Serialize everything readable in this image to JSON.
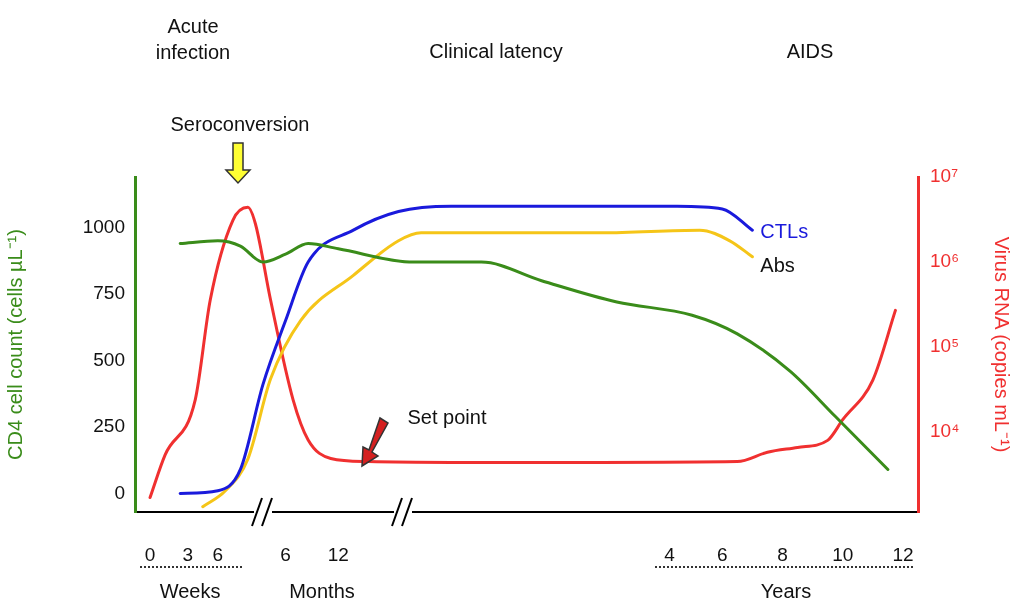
{
  "chart_data": {
    "type": "line",
    "ylabel": "CD4 cell count (cells µL⁻¹)",
    "y2label": "Virus RNA (copies mL⁻¹)",
    "annotations": [
      "Acute infection",
      "Clinical latency",
      "AIDS",
      "Seroconversion",
      {
        "text": "Set point",
        "y": 120
      },
      "Weeks",
      "Months",
      "Years"
    ],
    "categories": [
      null,
      null,
      "0",
      null,
      null,
      null,
      null,
      "3",
      null,
      null,
      null,
      "6",
      null,
      null,
      null,
      null,
      null,
      null,
      null,
      null,
      "6",
      null,
      null,
      null,
      null,
      null,
      null,
      "12",
      null,
      null,
      null,
      null,
      null,
      null,
      null,
      null,
      null,
      null,
      null,
      null,
      null,
      null,
      null,
      null,
      null,
      null,
      null,
      null,
      null,
      null,
      null,
      null,
      null,
      null,
      null,
      null,
      null,
      null,
      null,
      null,
      null,
      null,
      null,
      null,
      null,
      null,
      null,
      null,
      null,
      null,
      null,
      "4",
      null,
      null,
      null,
      null,
      null,
      null,
      "6",
      null,
      null,
      null,
      null,
      null,
      null,
      null,
      "8",
      null,
      null,
      null,
      null,
      null,
      null,
      null,
      "10",
      null,
      null,
      null,
      null,
      null,
      null,
      null,
      "12",
      null,
      null
    ],
    "ylim": [
      -70,
      1190
    ],
    "yticks": [
      0,
      250,
      500,
      750,
      1000
    ],
    "y2lim": [
      1150,
      10000000
    ],
    "y2ticks": [
      {
        "value": 10000,
        "label": "10⁴"
      },
      {
        "value": 100000,
        "label": "10⁵"
      },
      {
        "value": 1000000,
        "label": "10⁶"
      },
      {
        "value": 10000000,
        "label": "10⁷"
      }
    ],
    "log": "y2",
    "grid": false,
    "legend": false,
    "series": [
      {
        "color": "#3a8c1a",
        "values": [
          null,
          null,
          null,
          null,
          null,
          null,
          940,
          null,
          null,
          null,
          null,
          950,
          null,
          null,
          930,
          null,
          null,
          870,
          null,
          null,
          900,
          null,
          null,
          940,
          null,
          null,
          null,
          920,
          null,
          null,
          null,
          null,
          null,
          null,
          null,
          null,
          null,
          870,
          null,
          null,
          null,
          null,
          null,
          null,
          null,
          null,
          870,
          null,
          null,
          null,
          null,
          null,
          null,
          null,
          800,
          null,
          null,
          null,
          null,
          null,
          null,
          null,
          null,
          null,
          720,
          null,
          null,
          null,
          null,
          null,
          null,
          null,
          null,
          null,
          670,
          null,
          null,
          null,
          null,
          null,
          600,
          null,
          null,
          null,
          null,
          null,
          null,
          460,
          null,
          null,
          null,
          null,
          null,
          290,
          null,
          null,
          null,
          null,
          null,
          null,
          90,
          null,
          null,
          null,
          null
        ]
      },
      {
        "name": "CTLs",
        "color": "#1a1adc",
        "values": [
          null,
          null,
          null,
          null,
          null,
          null,
          0,
          null,
          null,
          null,
          null,
          10,
          null,
          null,
          90,
          null,
          null,
          410,
          null,
          null,
          650,
          null,
          null,
          870,
          null,
          null,
          null,
          null,
          null,
          990,
          null,
          null,
          null,
          null,
          null,
          1060,
          null,
          null,
          null,
          null,
          null,
          null,
          1080,
          null,
          null,
          null,
          null,
          null,
          null,
          null,
          null,
          null,
          null,
          null,
          null,
          1080,
          null,
          null,
          null,
          null,
          null,
          null,
          null,
          null,
          null,
          null,
          null,
          null,
          null,
          null,
          null,
          null,
          1080,
          null,
          null,
          null,
          null,
          null,
          1070,
          null,
          null,
          null,
          990,
          null,
          null,
          null,
          null,
          null,
          null,
          null,
          null,
          null,
          null,
          null,
          null,
          null,
          null,
          null,
          null,
          null,
          null,
          null,
          null,
          null,
          null
        ]
      },
      {
        "name": "Abs",
        "color": "#f5c518",
        "values": [
          null,
          null,
          null,
          null,
          null,
          null,
          null,
          null,
          null,
          -50,
          null,
          null,
          10,
          null,
          null,
          130,
          null,
          null,
          430,
          null,
          null,
          null,
          650,
          null,
          null,
          null,
          null,
          null,
          null,
          820,
          null,
          null,
          null,
          null,
          null,
          950,
          null,
          null,
          980,
          null,
          null,
          null,
          null,
          null,
          null,
          null,
          null,
          null,
          null,
          980,
          null,
          null,
          null,
          null,
          null,
          null,
          null,
          null,
          null,
          null,
          null,
          null,
          980,
          null,
          null,
          null,
          null,
          null,
          null,
          null,
          null,
          null,
          null,
          null,
          null,
          990,
          null,
          null,
          null,
          950,
          null,
          null,
          890,
          null,
          null,
          null,
          null,
          null,
          null,
          null,
          null,
          null,
          null,
          null,
          null,
          null,
          null,
          null,
          null,
          null,
          null,
          null,
          null,
          null,
          null
        ]
      },
      {
        "axis": "y2",
        "color": "#f03030",
        "values": [
          null,
          null,
          1700,
          null,
          5400,
          null,
          null,
          null,
          24000,
          null,
          360000,
          null,
          null,
          3100000,
          null,
          4400000,
          2800000,
          null,
          360000,
          null,
          null,
          24000,
          null,
          8100,
          null,
          null,
          4900,
          null,
          null,
          null,
          null,
          4500,
          null,
          null,
          null,
          null,
          null,
          null,
          null,
          null,
          null,
          null,
          4400,
          null,
          null,
          null,
          null,
          null,
          null,
          null,
          null,
          null,
          null,
          null,
          null,
          null,
          null,
          null,
          null,
          null,
          null,
          null,
          4400,
          null,
          null,
          null,
          null,
          null,
          null,
          null,
          null,
          null,
          null,
          null,
          null,
          null,
          null,
          null,
          null,
          null,
          4500,
          null,
          null,
          null,
          5800,
          null,
          null,
          null,
          6600,
          null,
          null,
          null,
          8000,
          null,
          14000,
          null,
          null,
          null,
          41000,
          null,
          null,
          270000,
          null,
          null,
          null
        ]
      }
    ]
  }
}
